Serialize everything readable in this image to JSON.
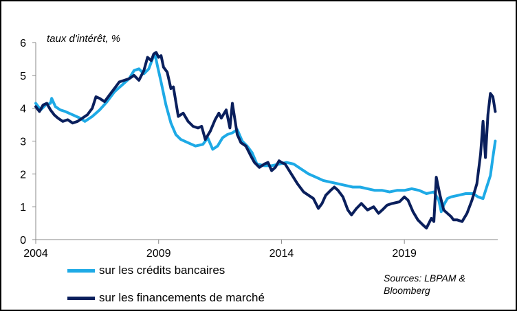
{
  "chart_data": {
    "type": "line",
    "title": "",
    "ylabel": "taux d'intérêt, %",
    "xlabel": "",
    "xlim": [
      2004.0,
      2022.8
    ],
    "ylim": [
      0,
      6
    ],
    "x_ticks": [
      2004,
      2009,
      2014,
      2019
    ],
    "x_tick_labels": [
      "2004",
      "2009",
      "2014",
      "2019"
    ],
    "y_ticks": [
      0,
      1,
      2,
      3,
      4,
      5,
      6
    ],
    "y_tick_labels": [
      "0",
      "1",
      "2",
      "3",
      "4",
      "5",
      "6"
    ],
    "grid": false,
    "legend_position": "bottom-left",
    "source": "Sources: LBPAM & Bloomberg",
    "series": [
      {
        "name": "sur les crédits bancaires",
        "color": "#1eaae6",
        "x": [
          2004.0,
          2004.2,
          2004.4,
          2004.6,
          2004.65,
          2004.8,
          2005.0,
          2005.2,
          2005.5,
          2005.8,
          2006.0,
          2006.3,
          2006.6,
          2006.9,
          2007.2,
          2007.5,
          2007.8,
          2008.0,
          2008.2,
          2008.4,
          2008.6,
          2008.75,
          2008.85,
          2008.95,
          2009.1,
          2009.3,
          2009.5,
          2009.7,
          2009.9,
          2010.2,
          2010.5,
          2010.8,
          2011.0,
          2011.2,
          2011.4,
          2011.6,
          2011.8,
          2012.0,
          2012.2,
          2012.4,
          2012.6,
          2012.8,
          2013.0,
          2013.3,
          2013.6,
          2013.9,
          2014.2,
          2014.5,
          2014.8,
          2015.1,
          2015.4,
          2015.7,
          2016.0,
          2016.3,
          2016.6,
          2016.9,
          2017.2,
          2017.5,
          2017.8,
          2018.1,
          2018.4,
          2018.7,
          2019.0,
          2019.3,
          2019.6,
          2019.9,
          2020.2,
          2020.4,
          2020.5,
          2020.6,
          2020.75,
          2020.9,
          2021.2,
          2021.5,
          2021.8,
          2022.0,
          2022.2,
          2022.35,
          2022.5,
          2022.6,
          2022.7
        ],
        "values": [
          4.15,
          3.95,
          4.1,
          4.15,
          4.3,
          4.05,
          3.95,
          3.9,
          3.8,
          3.7,
          3.6,
          3.75,
          3.95,
          4.2,
          4.5,
          4.7,
          4.9,
          5.15,
          5.2,
          5.05,
          5.2,
          5.5,
          5.65,
          5.3,
          4.8,
          4.1,
          3.55,
          3.2,
          3.05,
          2.95,
          2.85,
          2.9,
          3.1,
          2.75,
          2.85,
          3.1,
          3.2,
          3.25,
          3.35,
          3.0,
          2.85,
          2.65,
          2.3,
          2.25,
          2.25,
          2.3,
          2.35,
          2.3,
          2.15,
          2.0,
          1.9,
          1.8,
          1.75,
          1.7,
          1.65,
          1.6,
          1.6,
          1.55,
          1.5,
          1.5,
          1.45,
          1.5,
          1.5,
          1.55,
          1.5,
          1.4,
          1.45,
          1.2,
          0.85,
          1.05,
          1.25,
          1.3,
          1.35,
          1.4,
          1.4,
          1.3,
          1.25,
          1.6,
          1.95,
          2.5,
          3.0
        ]
      },
      {
        "name": "sur les financements de marché",
        "color": "#0a1f5c",
        "x": [
          2004.0,
          2004.15,
          2004.3,
          2004.45,
          2004.6,
          2004.75,
          2004.9,
          2005.1,
          2005.3,
          2005.5,
          2005.7,
          2005.9,
          2006.1,
          2006.3,
          2006.45,
          2006.6,
          2006.8,
          2007.0,
          2007.2,
          2007.4,
          2007.6,
          2007.8,
          2008.0,
          2008.2,
          2008.4,
          2008.55,
          2008.7,
          2008.8,
          2008.9,
          2009.0,
          2009.1,
          2009.2,
          2009.35,
          2009.5,
          2009.6,
          2009.8,
          2010.0,
          2010.2,
          2010.4,
          2010.6,
          2010.75,
          2010.9,
          2011.1,
          2011.3,
          2011.45,
          2011.55,
          2011.75,
          2011.9,
          2012.0,
          2012.2,
          2012.35,
          2012.55,
          2012.75,
          2012.9,
          2013.1,
          2013.3,
          2013.45,
          2013.6,
          2013.75,
          2013.9,
          2014.0,
          2014.15,
          2014.4,
          2014.65,
          2014.9,
          2015.1,
          2015.3,
          2015.5,
          2015.65,
          2015.8,
          2016.0,
          2016.15,
          2016.3,
          2016.5,
          2016.7,
          2016.85,
          2017.05,
          2017.25,
          2017.5,
          2017.75,
          2017.95,
          2018.1,
          2018.3,
          2018.5,
          2018.8,
          2019.0,
          2019.15,
          2019.35,
          2019.55,
          2019.75,
          2019.9,
          2020.1,
          2020.2,
          2020.3,
          2020.45,
          2020.6,
          2020.75,
          2020.9,
          2021.0,
          2021.15,
          2021.35,
          2021.55,
          2021.75,
          2021.95,
          2022.1,
          2022.2,
          2022.3,
          2022.4,
          2022.5,
          2022.6,
          2022.7
        ],
        "values": [
          4.05,
          3.9,
          4.1,
          4.15,
          3.95,
          3.8,
          3.7,
          3.6,
          3.65,
          3.55,
          3.6,
          3.7,
          3.8,
          4.0,
          4.35,
          4.3,
          4.2,
          4.4,
          4.6,
          4.8,
          4.85,
          4.9,
          5.0,
          4.85,
          5.15,
          5.55,
          5.45,
          5.65,
          5.7,
          5.55,
          5.6,
          5.25,
          5.1,
          4.6,
          4.65,
          3.75,
          3.85,
          3.6,
          3.45,
          3.4,
          3.45,
          3.05,
          3.3,
          3.65,
          3.85,
          3.7,
          3.95,
          3.4,
          4.15,
          3.2,
          2.95,
          2.85,
          2.55,
          2.35,
          2.2,
          2.3,
          2.35,
          2.1,
          2.2,
          2.4,
          2.35,
          2.3,
          2.0,
          1.7,
          1.45,
          1.35,
          1.25,
          0.95,
          1.1,
          1.35,
          1.5,
          1.6,
          1.5,
          1.3,
          0.9,
          0.75,
          0.95,
          1.1,
          0.9,
          1.0,
          0.8,
          0.9,
          1.05,
          1.1,
          1.15,
          1.3,
          1.2,
          0.85,
          0.6,
          0.45,
          0.35,
          0.65,
          0.55,
          1.9,
          1.35,
          0.9,
          0.8,
          0.7,
          0.6,
          0.6,
          0.55,
          0.8,
          1.2,
          1.7,
          2.6,
          3.6,
          2.5,
          3.8,
          4.45,
          4.35,
          3.9
        ]
      }
    ]
  }
}
